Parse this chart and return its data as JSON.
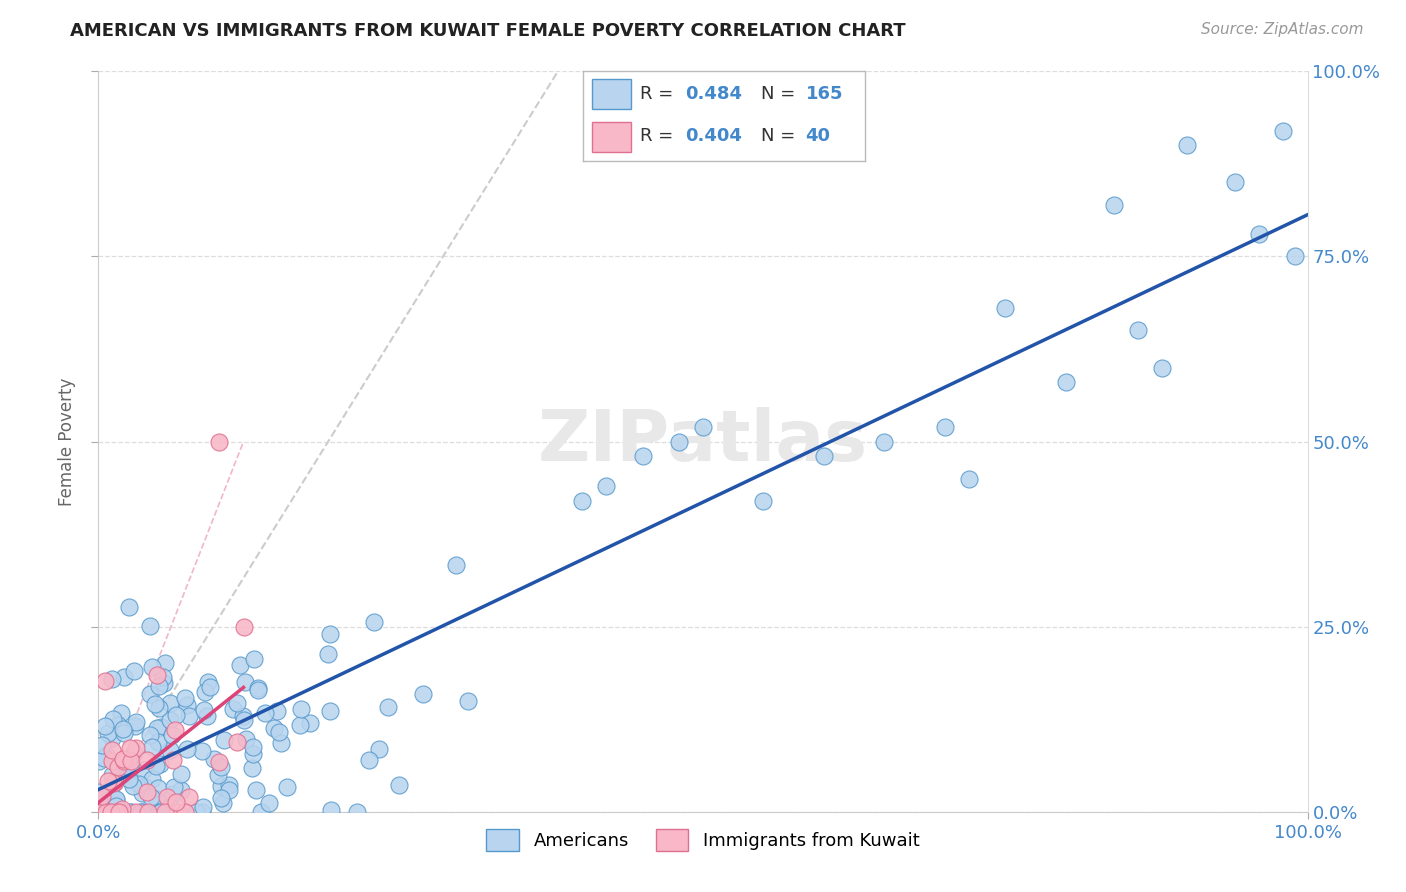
{
  "title": "AMERICAN VS IMMIGRANTS FROM KUWAIT FEMALE POVERTY CORRELATION CHART",
  "source": "Source: ZipAtlas.com",
  "ylabel": "Female Poverty",
  "xlim": [
    0,
    1
  ],
  "ylim": [
    0,
    1
  ],
  "xtick_labels": [
    "0.0%",
    "100.0%"
  ],
  "ytick_labels": [
    "0.0%",
    "25.0%",
    "50.0%",
    "75.0%",
    "100.0%"
  ],
  "ytick_positions": [
    0,
    0.25,
    0.5,
    0.75,
    1.0
  ],
  "r_american": 0.484,
  "n_american": 165,
  "r_kuwait": 0.404,
  "n_kuwait": 40,
  "american_fill": "#b8d4ee",
  "american_edge": "#5599cc",
  "kuwait_fill": "#f8b8c8",
  "kuwait_edge": "#e07090",
  "american_line_color": "#2255aa",
  "kuwait_line_color": "#dd4477",
  "diagonal_color": "#cccccc",
  "background_color": "#ffffff",
  "grid_color": "#dddddd",
  "watermark_color": "#e8e8e8",
  "legend_text_color": "#333333",
  "legend_value_color": "#4488cc",
  "title_color": "#222222",
  "source_color": "#999999",
  "ylabel_color": "#666666",
  "tick_color": "#4488cc"
}
